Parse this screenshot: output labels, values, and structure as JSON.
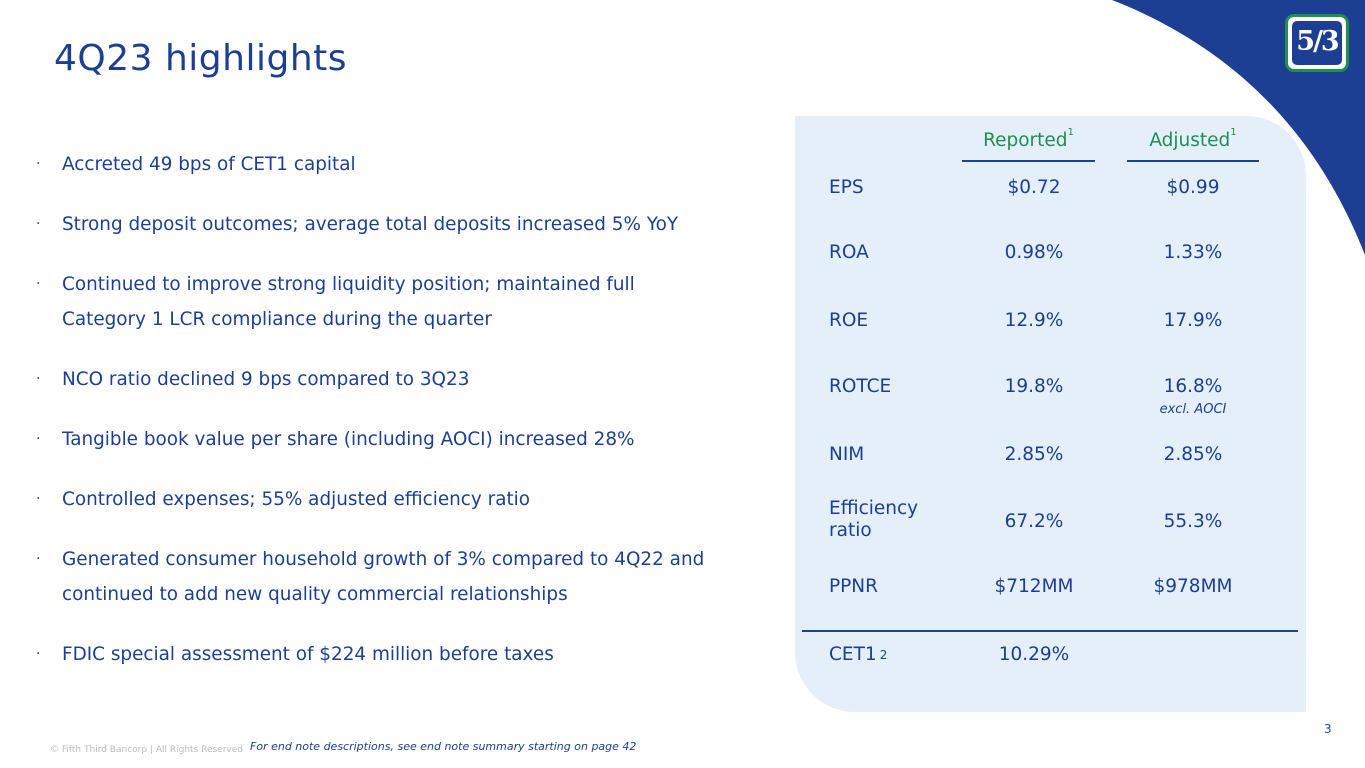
{
  "title": "4Q23 highlights",
  "logo_text": "5/3",
  "bullets": [
    {
      "text": "Accreted 49 bps of CET1 capital"
    },
    {
      "text": "Strong deposit outcomes; average total deposits increased 5% YoY"
    },
    {
      "line1": "Continued to improve strong liquidity position; maintained full",
      "line2": "Category 1 LCR compliance during the quarter"
    },
    {
      "text": "NCO ratio declined 9 bps compared to 3Q23"
    },
    {
      "text": "Tangible book value per share (including AOCI) increased 28%"
    },
    {
      "text": "Controlled expenses; 55% adjusted efficiency ratio"
    },
    {
      "line1": "Generated consumer household growth of 3% compared to 4Q22 and",
      "line2": "continued to add new quality commercial relationships"
    },
    {
      "text": "FDIC special assessment of $224 million before taxes"
    }
  ],
  "bullet_marker": "·",
  "table": {
    "headers": {
      "reported": "Reported",
      "adjusted": "Adjusted",
      "footnote": "1"
    },
    "rows": [
      {
        "label": "EPS",
        "reported": "$0.72",
        "adjusted": "$0.99"
      },
      {
        "label": "ROA",
        "reported": "0.98%",
        "adjusted": "1.33%"
      },
      {
        "label": "ROE",
        "reported": "12.9%",
        "adjusted": "17.9%"
      },
      {
        "label": "ROTCE",
        "reported": "19.8%",
        "adjusted": "16.8%",
        "adjusted_note": "excl. AOCI"
      },
      {
        "label": "NIM",
        "reported": "2.85%",
        "adjusted": "2.85%"
      },
      {
        "label_line1": "Efficiency",
        "label_line2": "ratio",
        "reported": "67.2%",
        "adjusted": "55.3%"
      },
      {
        "label": "PPNR",
        "reported": "$712MM",
        "adjusted": "$978MM"
      }
    ],
    "cet1": {
      "label": "CET1",
      "footnote": "2",
      "reported": "10.29%"
    }
  },
  "copyright": "© Fifth Third Bancorp | All Rights Reserved",
  "footnote": "For end note descriptions, see end note summary starting on page 42",
  "page_number": "3",
  "colors": {
    "brand_blue": "#1c3f94",
    "brand_green": "#1f8f4e",
    "panel_bg": "#e4effa"
  }
}
